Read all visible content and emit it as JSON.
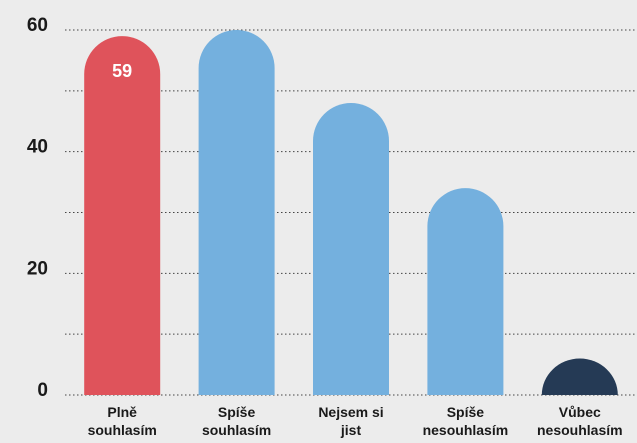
{
  "chart_data": {
    "type": "bar",
    "categories": [
      "Plně souhlasím",
      "Spíše souhlasím",
      "Nejsem si jist",
      "Spíše nesouhlasím",
      "Vůbec nesouhlasím"
    ],
    "values": [
      59,
      60,
      48,
      34,
      6
    ],
    "value_labels": [
      "59",
      null,
      null,
      null,
      null
    ],
    "colors": [
      "#df535b",
      "#74b0de",
      "#74b0de",
      "#74b0de",
      "#253a55"
    ],
    "ylim": [
      0,
      60
    ],
    "yticks": [
      0,
      20,
      40,
      60
    ],
    "minor_yticks": [
      10,
      30,
      50
    ],
    "grid": true
  }
}
